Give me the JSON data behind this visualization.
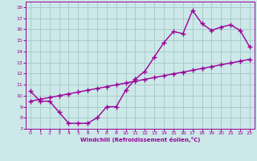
{
  "xlabel": "Windchill (Refroidissement éolien,°C)",
  "ylabel": "",
  "background_color": "#cce8e8",
  "line_color": "#990099",
  "grid_color": "#aacccc",
  "xlim": [
    -0.5,
    23.5
  ],
  "ylim": [
    7,
    18.5
  ],
  "xticks": [
    0,
    1,
    2,
    3,
    4,
    5,
    6,
    7,
    8,
    9,
    10,
    11,
    12,
    13,
    14,
    15,
    16,
    17,
    18,
    19,
    20,
    21,
    22,
    23
  ],
  "yticks": [
    7,
    8,
    9,
    10,
    11,
    12,
    13,
    14,
    15,
    16,
    17,
    18
  ],
  "line1_x": [
    0,
    1,
    2,
    3,
    4,
    5,
    6,
    7,
    8,
    9,
    10,
    11,
    12,
    13,
    14,
    15,
    16,
    17,
    18,
    19,
    20,
    21,
    22,
    23
  ],
  "line1_y": [
    10.4,
    9.5,
    9.5,
    8.5,
    7.5,
    7.5,
    7.5,
    8.0,
    9.0,
    9.0,
    10.5,
    11.5,
    12.2,
    13.5,
    14.8,
    15.8,
    15.6,
    17.7,
    16.5,
    15.9,
    16.2,
    16.4,
    15.9,
    14.4
  ],
  "line2_x": [
    0,
    1,
    2,
    3,
    4,
    5,
    6,
    7,
    8,
    9,
    10,
    11,
    12,
    13,
    14,
    15,
    16,
    17,
    18,
    19,
    20,
    21,
    22,
    23
  ],
  "line2_y": [
    9.5,
    9.66,
    9.83,
    9.99,
    10.16,
    10.32,
    10.49,
    10.65,
    10.81,
    10.98,
    11.14,
    11.31,
    11.47,
    11.64,
    11.8,
    11.97,
    12.13,
    12.29,
    12.46,
    12.62,
    12.79,
    12.95,
    13.12,
    13.28
  ],
  "marker": "+",
  "markersize": 4,
  "linewidth": 1.0
}
